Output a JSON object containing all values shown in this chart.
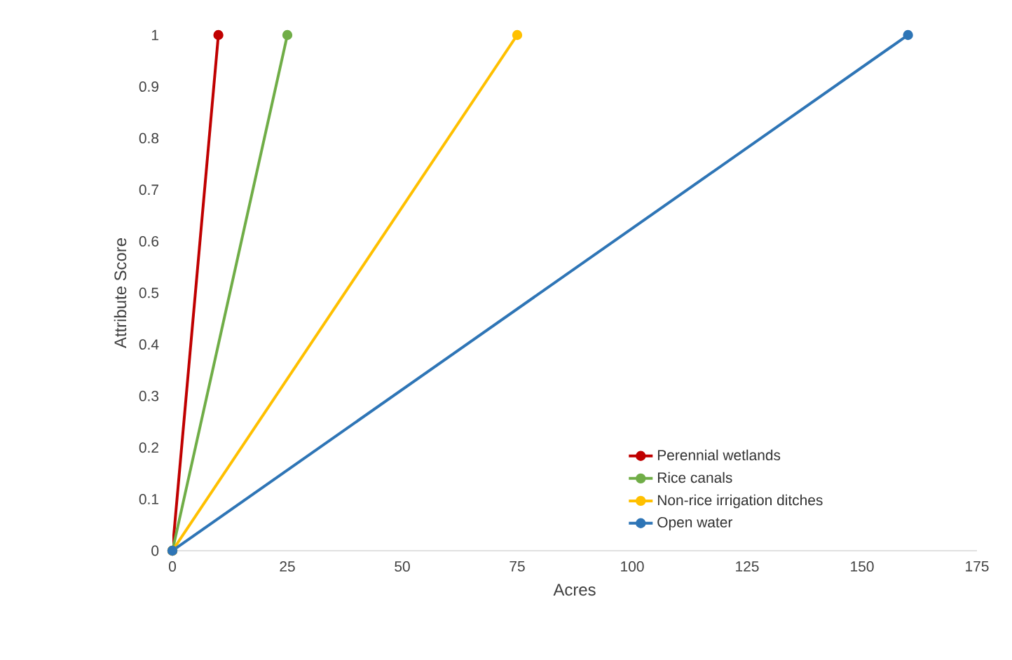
{
  "chart_data": {
    "type": "line",
    "xlabel": "Acres",
    "ylabel": "Attribute Score",
    "xlim": [
      0,
      175
    ],
    "xticks": [
      0,
      25,
      50,
      75,
      100,
      125,
      150,
      175
    ],
    "ylim": [
      0,
      1
    ],
    "yticks": [
      0,
      0.1,
      0.2,
      0.3,
      0.4,
      0.5,
      0.6,
      0.7,
      0.8,
      0.9,
      1
    ],
    "grid": false,
    "legend": "bottom right",
    "marker": "circle",
    "line_style": "solid",
    "series": [
      {
        "name": "Perennial wetlands",
        "color": "#c00000",
        "x": [
          0,
          10
        ],
        "values": [
          0,
          1
        ]
      },
      {
        "name": "Rice canals",
        "color": "#70ad47",
        "x": [
          0,
          25
        ],
        "values": [
          0,
          1
        ]
      },
      {
        "name": "Non-rice irrigation ditches",
        "color": "#ffc000",
        "x": [
          0,
          75
        ],
        "values": [
          0,
          1
        ]
      },
      {
        "name": "Open water",
        "color": "#2e75b6",
        "x": [
          0,
          160
        ],
        "values": [
          0,
          1
        ]
      }
    ]
  }
}
